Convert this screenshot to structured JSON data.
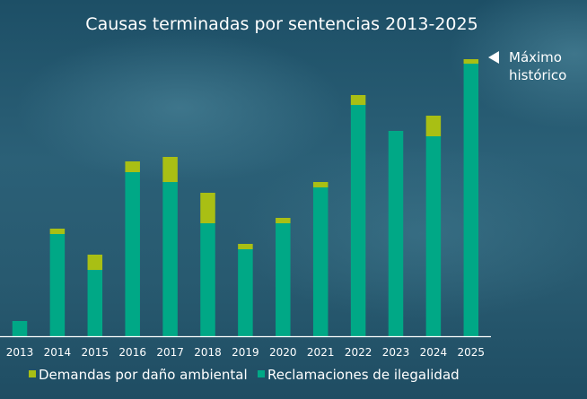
{
  "chart_data": {
    "type": "bar",
    "stacked": true,
    "title": "Causas terminadas por sentencias 2013-2025",
    "xlabel": "",
    "ylabel": "",
    "categories": [
      "2013",
      "2014",
      "2015",
      "2016",
      "2017",
      "2018",
      "2019",
      "2020",
      "2021",
      "2022",
      "2023",
      "2024",
      "2025"
    ],
    "series": [
      {
        "name": "Reclamaciones de ilegalidad",
        "color": "#00A886",
        "values": [
          17,
          114,
          74,
          183,
          172,
          126,
          97,
          126,
          166,
          258,
          229,
          223,
          304
        ]
      },
      {
        "name": "Demandas por daño ambiental",
        "color": "#A9BF14",
        "values": [
          0,
          6,
          17,
          12,
          28,
          34,
          6,
          6,
          6,
          11,
          0,
          23,
          5
        ]
      }
    ],
    "ylim": [
      0,
      310
    ],
    "grid": false,
    "y_axis_shown": false,
    "legend_placement": "bottom",
    "legend_order": [
      "Demandas por daño ambiental",
      "Reclamaciones de ilegalidad"
    ],
    "annotation": {
      "lines": [
        "Máximo",
        "histórico"
      ],
      "target": "2025",
      "icon": "triangle-left-icon"
    }
  }
}
